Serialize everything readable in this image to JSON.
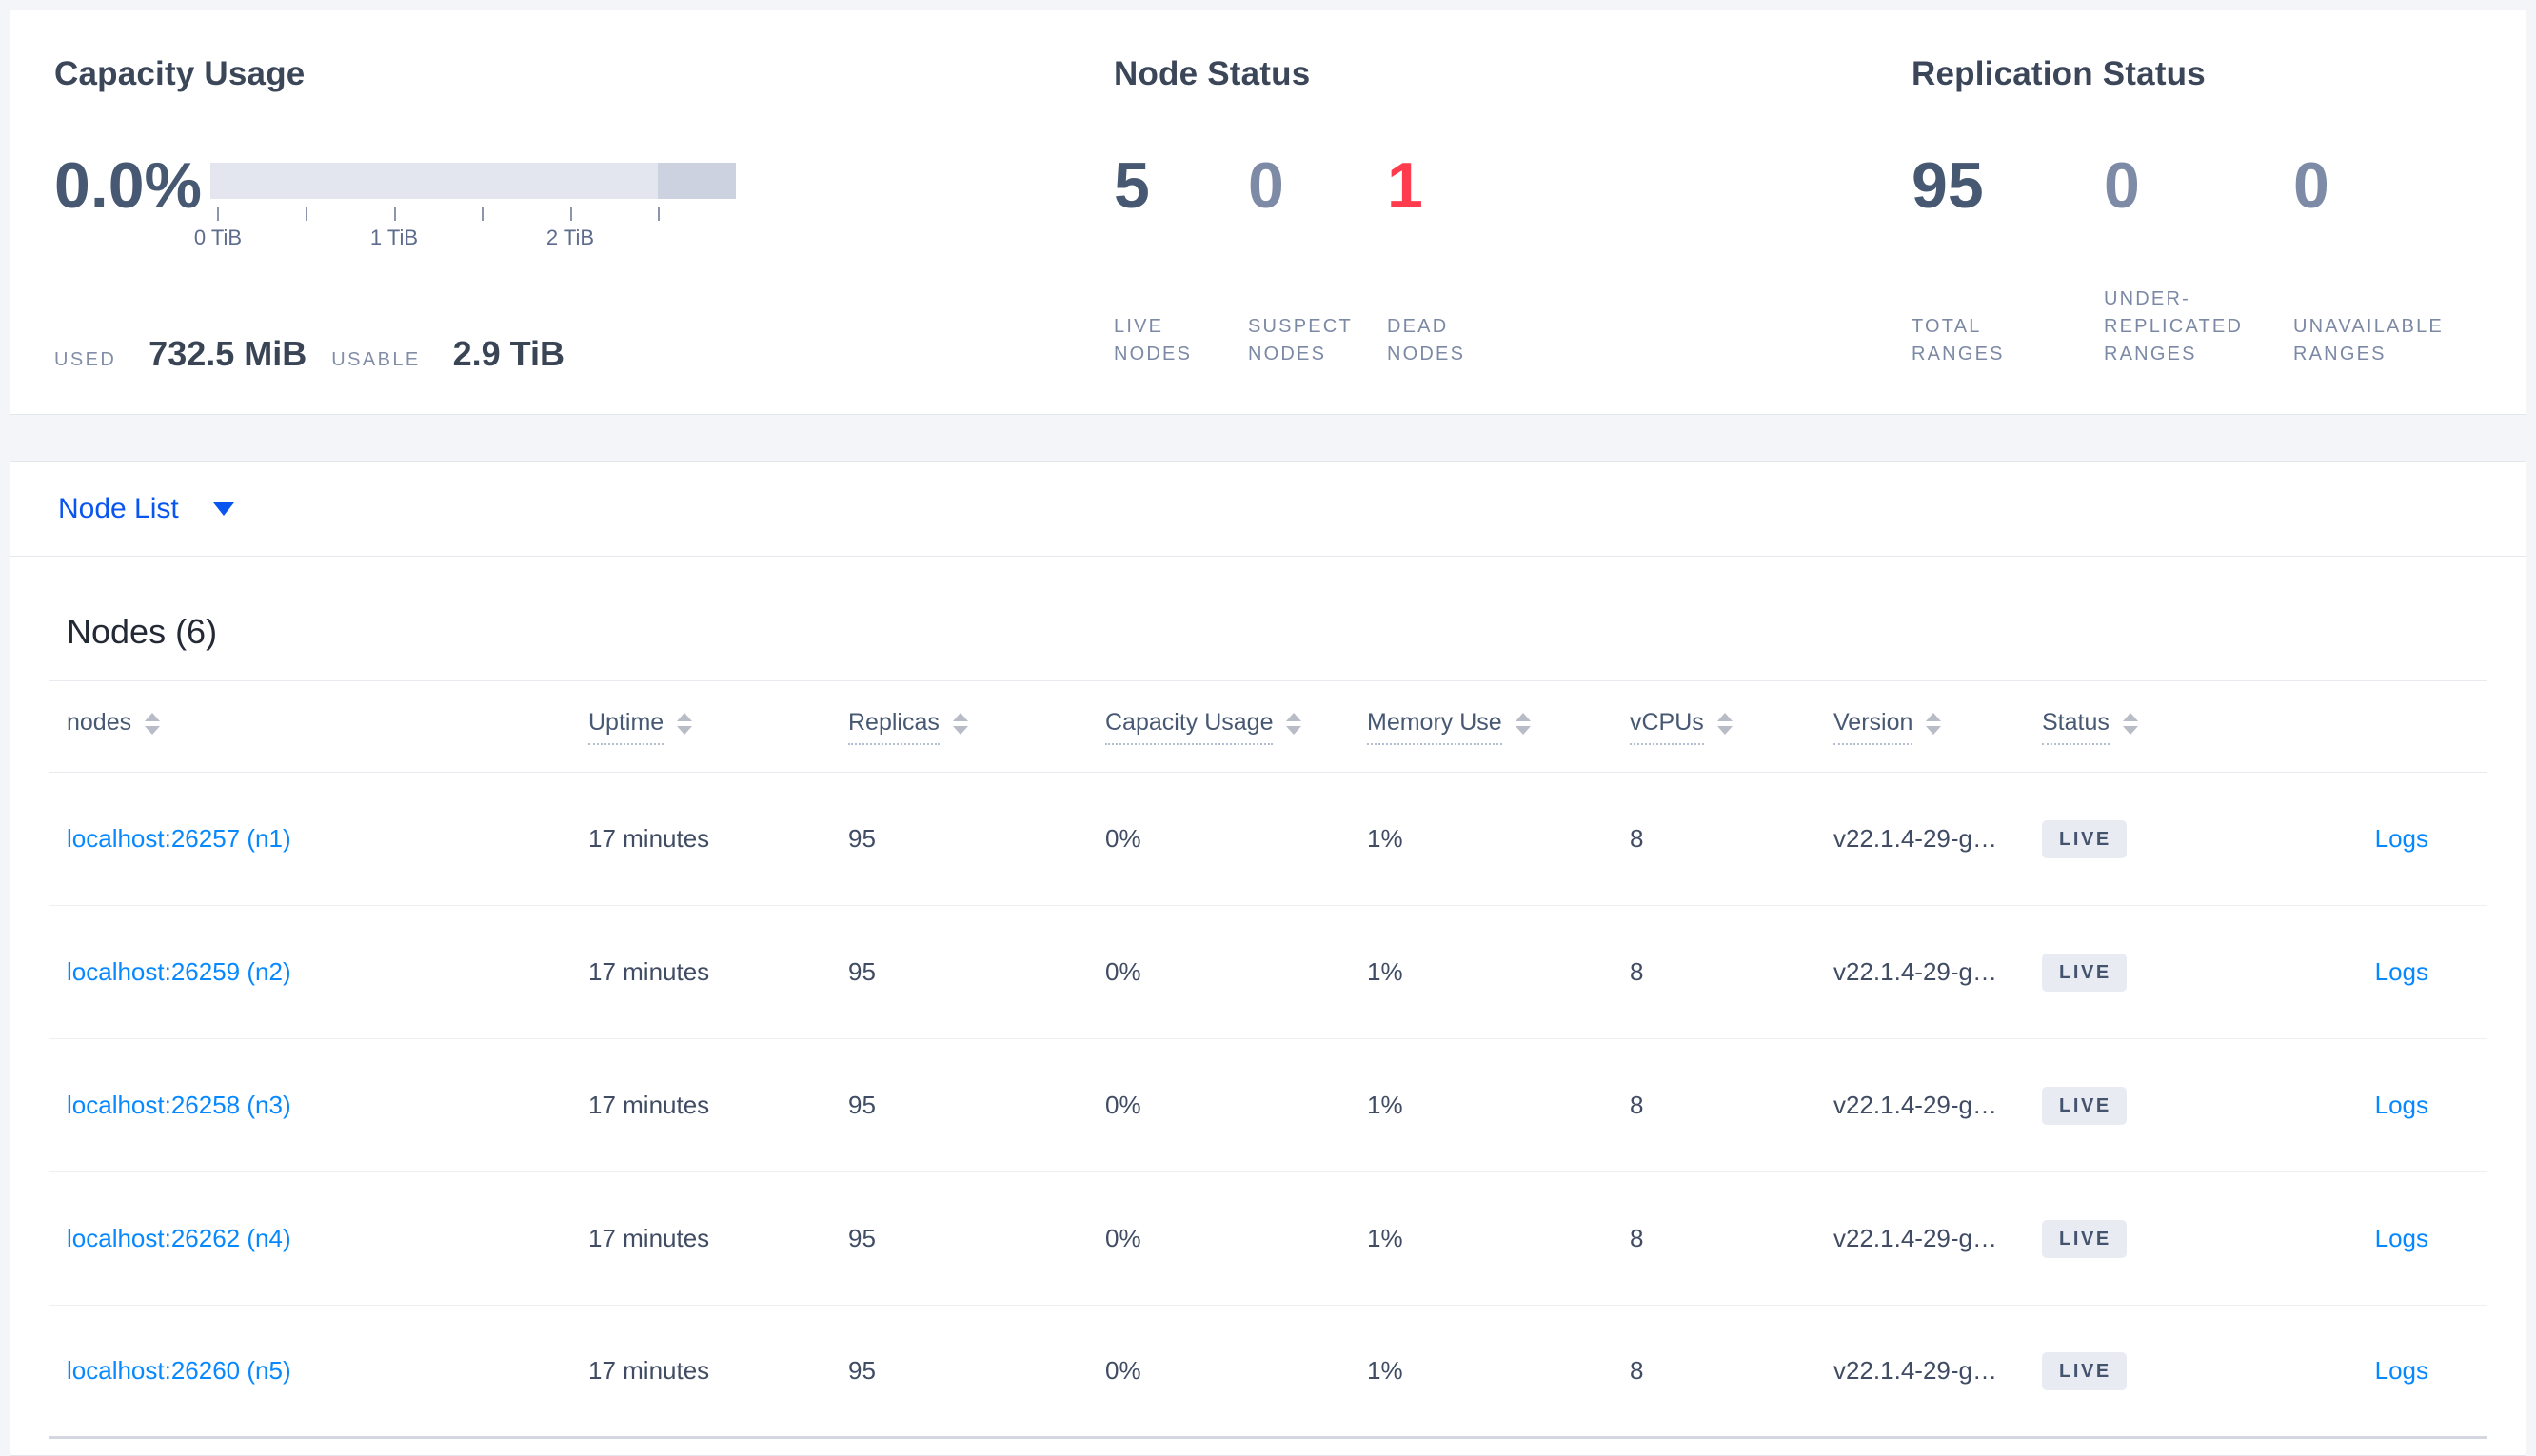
{
  "overview": {
    "capacity": {
      "title": "Capacity Usage",
      "percent": "0.0%",
      "ticks": [
        "0 TiB",
        "1 TiB",
        "2 TiB"
      ],
      "used_label": "USED",
      "used_value": "732.5 MiB",
      "usable_label": "USABLE",
      "usable_value": "2.9 TiB"
    },
    "node_status": {
      "title": "Node Status",
      "stats": [
        {
          "value": "5",
          "label": "LIVE NODES",
          "tone": "primary"
        },
        {
          "value": "0",
          "label": "SUSPECT NODES",
          "tone": "muted"
        },
        {
          "value": "1",
          "label": "DEAD NODES",
          "tone": "danger"
        }
      ]
    },
    "replication": {
      "title": "Replication Status",
      "stats": [
        {
          "value": "95",
          "label": "TOTAL RANGES",
          "tone": "primary"
        },
        {
          "value": "0",
          "label": "UNDER-REPLICATED RANGES",
          "tone": "muted"
        },
        {
          "value": "0",
          "label": "UNAVAILABLE RANGES",
          "tone": "muted"
        }
      ]
    }
  },
  "colors": {
    "primary": "#475872",
    "muted": "#7e8ba7",
    "danger": "#ff3b4e",
    "link": "#0788ff",
    "dropdown_link": "#0a55f0",
    "bar_light": "#e4e6ef",
    "bar_dark": "#cdd2e0"
  },
  "node_list": {
    "dropdown_label": "Node List",
    "section_title": "Nodes (6)",
    "columns": [
      "nodes",
      "Uptime",
      "Replicas",
      "Capacity Usage",
      "Memory Use",
      "vCPUs",
      "Version",
      "Status"
    ],
    "rows": [
      {
        "address": "localhost:26257 (n1)",
        "uptime": "17 minutes",
        "replicas": "95",
        "capacity_usage": "0%",
        "memory_use": "1%",
        "vcpus": "8",
        "version": "v22.1.4-29-g…",
        "status": "LIVE",
        "logs_label": "Logs"
      },
      {
        "address": "localhost:26259 (n2)",
        "uptime": "17 minutes",
        "replicas": "95",
        "capacity_usage": "0%",
        "memory_use": "1%",
        "vcpus": "8",
        "version": "v22.1.4-29-g…",
        "status": "LIVE",
        "logs_label": "Logs"
      },
      {
        "address": "localhost:26258 (n3)",
        "uptime": "17 minutes",
        "replicas": "95",
        "capacity_usage": "0%",
        "memory_use": "1%",
        "vcpus": "8",
        "version": "v22.1.4-29-g…",
        "status": "LIVE",
        "logs_label": "Logs"
      },
      {
        "address": "localhost:26262 (n4)",
        "uptime": "17 minutes",
        "replicas": "95",
        "capacity_usage": "0%",
        "memory_use": "1%",
        "vcpus": "8",
        "version": "v22.1.4-29-g…",
        "status": "LIVE",
        "logs_label": "Logs"
      },
      {
        "address": "localhost:26260 (n5)",
        "uptime": "17 minutes",
        "replicas": "95",
        "capacity_usage": "0%",
        "memory_use": "1%",
        "vcpus": "8",
        "version": "v22.1.4-29-g…",
        "status": "LIVE",
        "logs_label": "Logs"
      }
    ]
  }
}
